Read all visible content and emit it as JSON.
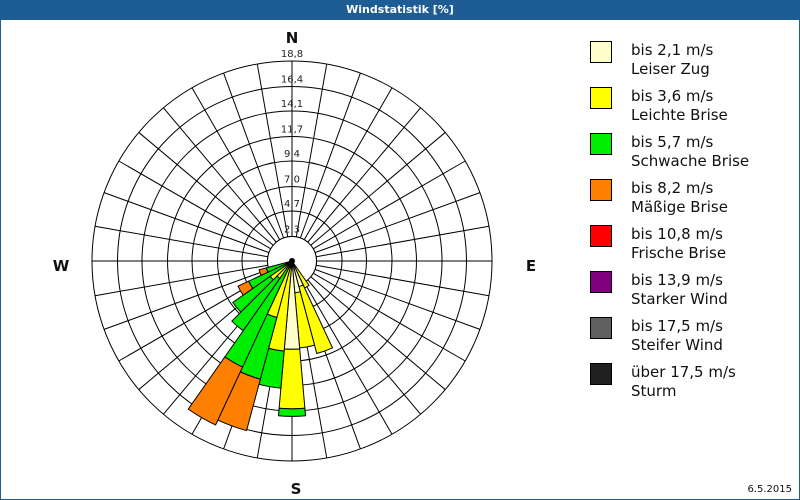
{
  "window": {
    "title": "Windstatistik [%]",
    "date": "6.5.2015"
  },
  "compass": {
    "N": "N",
    "E": "E",
    "S": "S",
    "W": "W"
  },
  "legend": [
    {
      "color": "#ffffcc",
      "line1": "bis 2,1 m/s",
      "line2": "Leiser Zug"
    },
    {
      "color": "#ffff00",
      "line1": "bis 3,6 m/s",
      "line2": "Leichte Brise"
    },
    {
      "color": "#00ee00",
      "line1": "bis 5,7 m/s",
      "line2": "Schwache Brise"
    },
    {
      "color": "#ff8000",
      "line1": "bis 8,2 m/s",
      "line2": "Mäßige Brise"
    },
    {
      "color": "#ff0000",
      "line1": "bis 10,8 m/s",
      "line2": "Frische Brise"
    },
    {
      "color": "#800080",
      "line1": "bis 13,9 m/s",
      "line2": "Starker Wind"
    },
    {
      "color": "#606060",
      "line1": "bis 17,5 m/s",
      "line2": "Steifer Wind"
    },
    {
      "color": "#202020",
      "line1": "über 17,5 m/s",
      "line2": "Sturm"
    }
  ],
  "chart_data": {
    "type": "polar-stacked-bar (wind rose)",
    "title": "Windstatistik [%]",
    "radial_ticks": [
      2.3,
      4.7,
      7.0,
      9.4,
      11.7,
      14.1,
      16.4,
      18.8
    ],
    "radial_max": 18.8,
    "sector_width_deg": 10,
    "direction_labels": [
      "N",
      "E",
      "S",
      "W"
    ],
    "series_names": [
      "bis 2,1 m/s",
      "bis 3,6 m/s",
      "bis 5,7 m/s",
      "bis 8,2 m/s",
      "bis 10,8 m/s",
      "bis 13,9 m/s",
      "bis 17,5 m/s",
      "über 17,5 m/s"
    ],
    "note": "values are cumulative percent per direction sector (outer edge of each class)",
    "sectors": [
      {
        "bearing": 150,
        "cumulative": [
          0,
          2.8
        ]
      },
      {
        "bearing": 160,
        "cumulative": [
          2.5,
          9.0
        ]
      },
      {
        "bearing": 170,
        "cumulative": [
          3.0,
          8.2
        ]
      },
      {
        "bearing": 180,
        "cumulative": [
          8.3,
          13.9,
          14.6
        ]
      },
      {
        "bearing": 190,
        "cumulative": [
          0,
          8.5,
          12.0
        ]
      },
      {
        "bearing": 200,
        "cumulative": [
          0,
          5.5,
          11.5,
          16.5
        ]
      },
      {
        "bearing": 210,
        "cumulative": [
          0,
          0,
          11.0,
          17.0
        ]
      },
      {
        "bearing": 220,
        "cumulative": [
          0,
          2.0,
          8.0
        ]
      },
      {
        "bearing": 230,
        "cumulative": [
          0,
          2.5,
          6.8
        ]
      },
      {
        "bearing": 240,
        "cumulative": [
          0,
          0,
          4.5,
          5.6
        ]
      },
      {
        "bearing": 250,
        "cumulative": [
          0,
          0,
          2.5,
          3.2
        ]
      }
    ],
    "date": "6.5.2015"
  }
}
